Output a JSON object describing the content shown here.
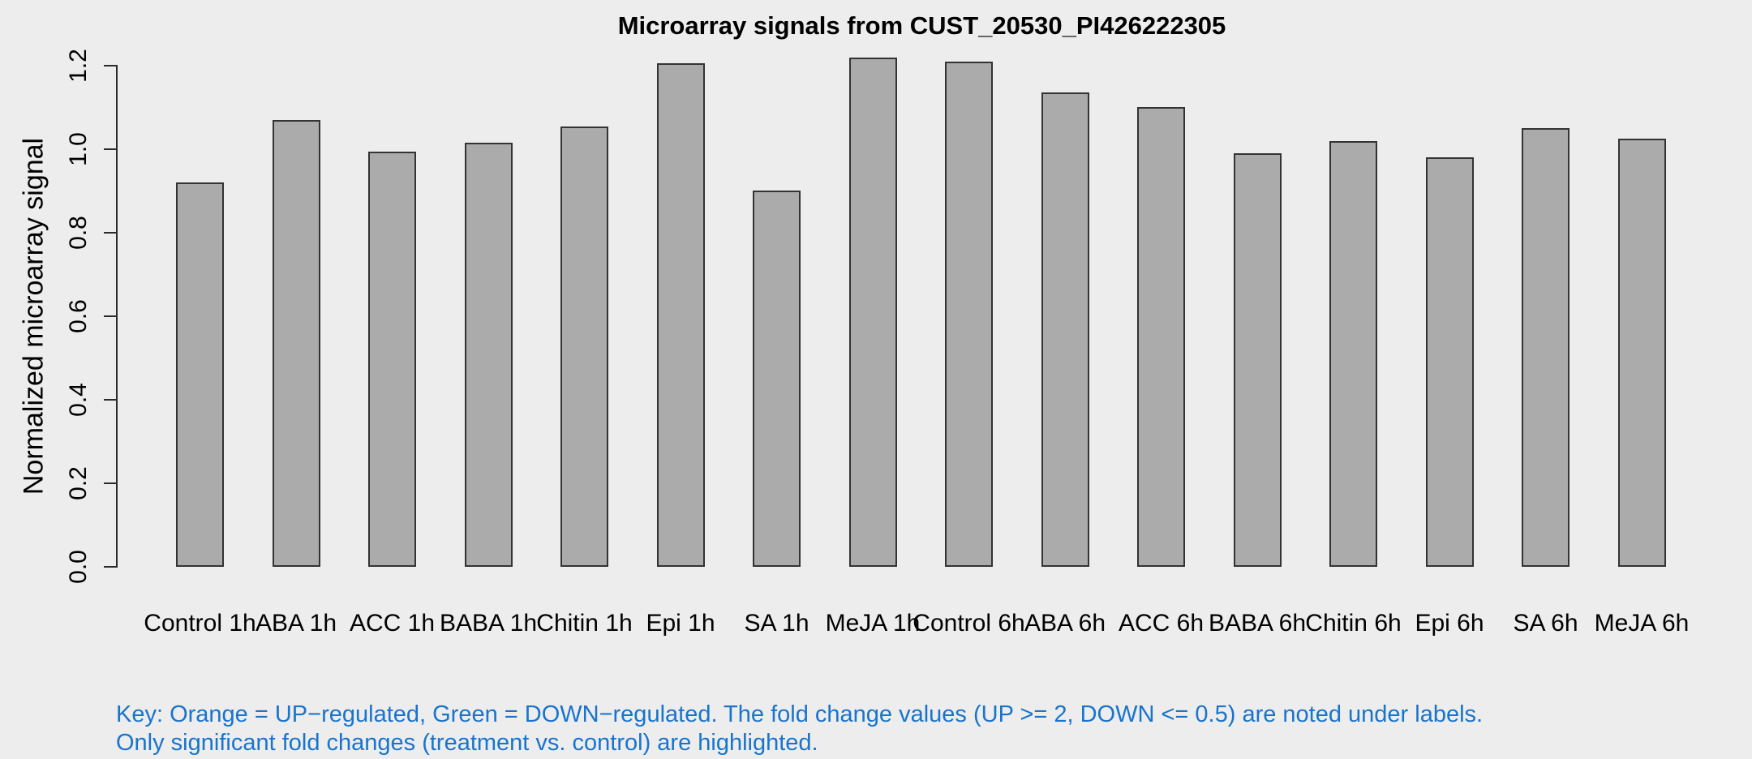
{
  "title": "Microarray signals from CUST_20530_PI426222305",
  "key_note": {
    "line1": "Key: Orange = UP−regulated, Green = DOWN−regulated. The fold change values (UP >= 2, DOWN <= 0.5) are noted under labels.",
    "line2": "Only significant fold changes (treatment vs. control) are highlighted.",
    "color": "#1874CD"
  },
  "colors": {
    "background": "#EDEDED",
    "bar_fill": "#ABABAB",
    "bar_border": "#333333",
    "axis": "#2B2B2B",
    "text": "#000000"
  },
  "chart_data": {
    "type": "bar",
    "title": "Microarray signals from CUST_20530_PI426222305",
    "xlabel": "",
    "ylabel": "Normalized microarray signal",
    "categories": [
      "Control 1h",
      "ABA 1h",
      "ACC 1h",
      "BABA 1h",
      "Chitin 1h",
      "Epi 1h",
      "SA 1h",
      "MeJA 1h",
      "Control 6h",
      "ABA 6h",
      "ACC 6h",
      "BABA 6h",
      "Chitin 6h",
      "Epi 6h",
      "SA 6h",
      "MeJA 6h"
    ],
    "values": [
      0.92,
      1.07,
      0.995,
      1.015,
      1.055,
      1.205,
      0.9,
      1.22,
      1.21,
      1.135,
      1.1,
      0.99,
      1.02,
      0.98,
      1.05,
      1.025
    ],
    "ylim": [
      0,
      1.2
    ],
    "yticks": [
      0.0,
      0.2,
      0.4,
      0.6,
      0.8,
      1.0,
      1.2
    ],
    "grid": false,
    "legend": "none",
    "bar_color_name": "gray"
  }
}
